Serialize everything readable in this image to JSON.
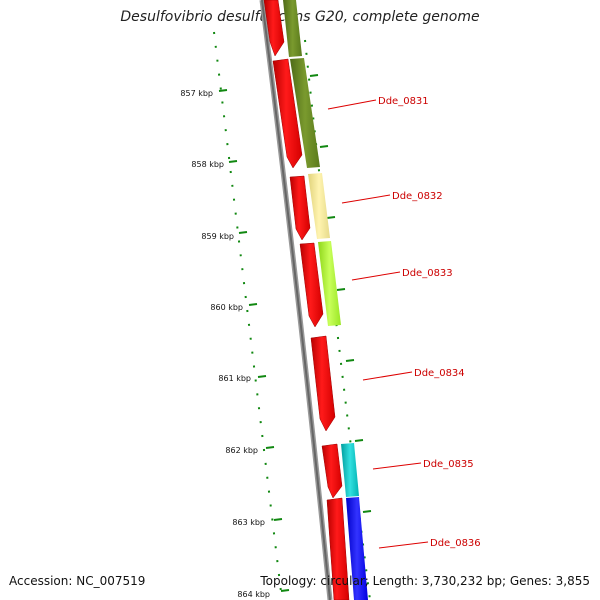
{
  "title": "Desulfovibrio desulfuricans G20, complete genome",
  "footer": {
    "accession": "Accession: NC_007519",
    "summary": "Topology: circular; Length: 3,730,232 bp; Genes: 3,855"
  },
  "ruler": {
    "labels": [
      "857 kbp",
      "858 kbp",
      "859 kbp",
      "860 kbp",
      "861 kbp",
      "862 kbp",
      "863 kbp",
      "864 kbp"
    ]
  },
  "gene_labels": [
    "Dde_0831",
    "Dde_0832",
    "Dde_0833",
    "Dde_0834",
    "Dde_0835",
    "Dde_0836"
  ],
  "colors": {
    "cds_forward": "#ff0000",
    "cog_olive": "#6b8e23",
    "cog_khaki": "#f0e68c",
    "cog_greenyellow": "#adff2f",
    "cog_cyan": "#00cccc",
    "cog_blue": "#0000ff",
    "ruler_ticks": "#007700",
    "backbone": "#777777",
    "label_text": "#cc0000"
  }
}
